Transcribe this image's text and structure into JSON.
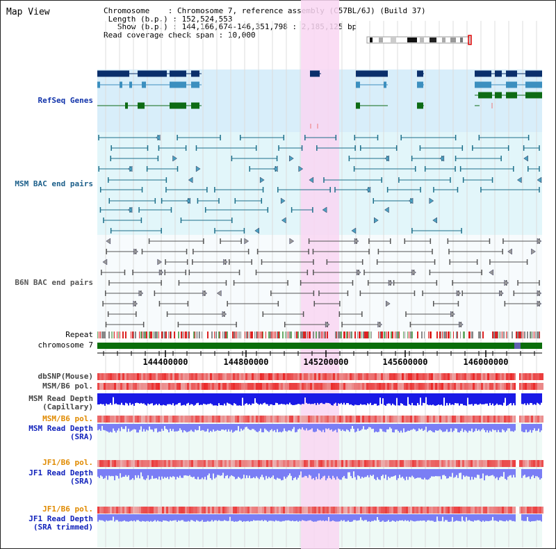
{
  "app": {
    "title": "Map View"
  },
  "header": {
    "chromosome_label": "Chromosome",
    "chromosome_value": "Chromosome 7, reference assembly (C57BL/6J) (Build 37)",
    "length_label": "Length (b.p.)",
    "length_value": "152,524,553",
    "show_label": "Show (b.p.)",
    "show_value": "144,166,674-146,351,798 : 2,185,125 bp",
    "coverage_label": "Read coverage check span",
    "coverage_value": "10,000",
    "sep": ":"
  },
  "tracks": {
    "refseq": "RefSeq Genes",
    "msm_bac": "MSM BAC end pairs",
    "b6n_bac": "B6N BAC end pairs",
    "repeat": "Repeat",
    "chromosome": "chromosome 7",
    "dbsnp": "dbSNP(Mouse)",
    "msm_b6_pol_1": "MSM/B6 pol.",
    "msm_read_depth_cap_1": "MSM Read Depth",
    "msm_read_depth_cap_2": "(Capillary)",
    "msm_b6_pol_2": "MSM/B6 pol.",
    "msm_read_depth_sra_1": "MSM Read Depth",
    "msm_read_depth_sra_2": "(SRA)",
    "jf1_b6_pol_1": "JF1/B6 pol.",
    "jf1_read_depth_sra_1": "JF1 Read Depth",
    "jf1_read_depth_sra_2": "(SRA)",
    "jf1_b6_pol_2": "JF1/B6 pol.",
    "jf1_read_depth_trim_1": "JF1 Read Depth",
    "jf1_read_depth_trim_2": "(SRA trimmed)"
  },
  "axis": {
    "ticks": [
      "144400000",
      "144800000",
      "145200000",
      "145600000",
      "146000000"
    ]
  },
  "colors": {
    "refseq_bg": "#d8eefa",
    "msm_bg": "#e2f6fa",
    "highlight": "#f9d6f2",
    "gene_dark": "#0a2f6b",
    "gene_light": "#3c8fbf",
    "gene_green": "#0d6b14",
    "bac_msm": "#1c6f8a",
    "bac_b6n": "#555555",
    "depth_blue": "#1a1ae6",
    "depth_sra": "#7a7ef5",
    "pol_red": "#e63b3b",
    "chrom_green": "#0b6e0b"
  }
}
